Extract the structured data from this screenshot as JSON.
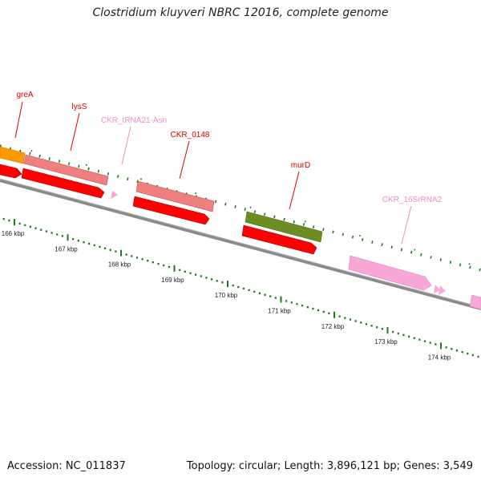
{
  "title": "Clostridium kluyveri NBRC 12016, complete genome",
  "footer": {
    "accession": "Accession: NC_011837",
    "summary": "Topology: circular; Length: 3,896,121 bp; Genes: 3,549"
  },
  "colors": {
    "backbone": "#8a8a8a",
    "cds": "#ff0000",
    "gene": "#ef8080",
    "trna": "#f7a8d6",
    "rrna": "#f7a8d6",
    "gc_tick": "#1f7a1f",
    "greA": "#ff9900",
    "murD": "#6b8e23",
    "label_gene": "#dd0000",
    "label_rna": "#f08ccc"
  },
  "gene_labels": [
    {
      "id": "greA",
      "text": "greA",
      "kind": "gene"
    },
    {
      "id": "lysS",
      "text": "lysS",
      "kind": "gene"
    },
    {
      "id": "trna21",
      "text": "CKR_tRNA21-Asn",
      "kind": "rna"
    },
    {
      "id": "ckr0148",
      "text": "CKR_0148",
      "kind": "gene"
    },
    {
      "id": "murD",
      "text": "murD",
      "kind": "gene"
    },
    {
      "id": "rrna16s",
      "text": "CKR_16SrRNA2",
      "kind": "rna"
    }
  ],
  "scale": {
    "unit": "kbp",
    "ticks": [
      {
        "value": 166,
        "label": "166 kbp"
      },
      {
        "value": 167,
        "label": "167 kbp"
      },
      {
        "value": 168,
        "label": "168 kbp"
      },
      {
        "value": 169,
        "label": "169 kbp"
      },
      {
        "value": 170,
        "label": "170 kbp"
      },
      {
        "value": 171,
        "label": "171 kbp"
      },
      {
        "value": 172,
        "label": "172 kbp"
      },
      {
        "value": 173,
        "label": "173 kbp"
      },
      {
        "value": 174,
        "label": "174 kbp"
      }
    ]
  }
}
